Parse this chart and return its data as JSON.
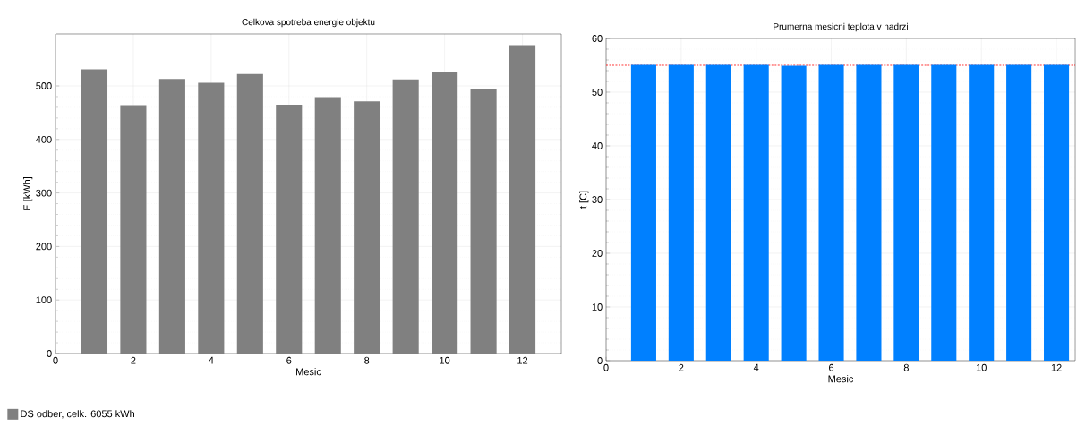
{
  "chart_data": [
    {
      "type": "bar",
      "title": "Celkova spotreba energie objektu",
      "xlabel": "Mesic",
      "ylabel": "E [kWh]",
      "x": [
        1,
        2,
        3,
        4,
        5,
        6,
        7,
        8,
        9,
        10,
        11,
        12
      ],
      "series": [
        {
          "name": "DS odber, celk. 6055 kWh",
          "color": "#808080",
          "values": [
            531,
            464,
            513,
            506,
            522,
            465,
            479,
            471,
            512,
            525,
            495,
            576
          ]
        }
      ],
      "xlim": [
        0,
        13
      ],
      "ylim": [
        0,
        597
      ],
      "xticks": [
        0,
        2,
        4,
        6,
        8,
        10,
        12
      ],
      "yticks": [
        0,
        100,
        200,
        300,
        400,
        500
      ],
      "grid": true,
      "legend": "bottom left"
    },
    {
      "type": "bar",
      "title": "Prumerna mesicni teplota v nadrzi",
      "xlabel": "Mesic",
      "ylabel": "t [C]",
      "x": [
        1,
        2,
        3,
        4,
        5,
        6,
        7,
        8,
        9,
        10,
        11,
        12
      ],
      "series": [
        {
          "color": "#0080ff",
          "values": [
            55.1,
            55.1,
            55.1,
            55.1,
            54.9,
            55.1,
            55.1,
            55.1,
            55.1,
            55.1,
            55.1,
            55.1
          ]
        }
      ],
      "xlim": [
        0,
        12.5
      ],
      "ylim": [
        0,
        60
      ],
      "xticks": [
        0,
        2,
        4,
        6,
        8,
        10,
        12
      ],
      "yticks": [
        0,
        10,
        20,
        30,
        40,
        50,
        60
      ],
      "ref_lines": [
        {
          "axis": "y",
          "value": 55,
          "color": "#ff0000",
          "line_style": "dashed"
        }
      ],
      "grid": true
    }
  ]
}
